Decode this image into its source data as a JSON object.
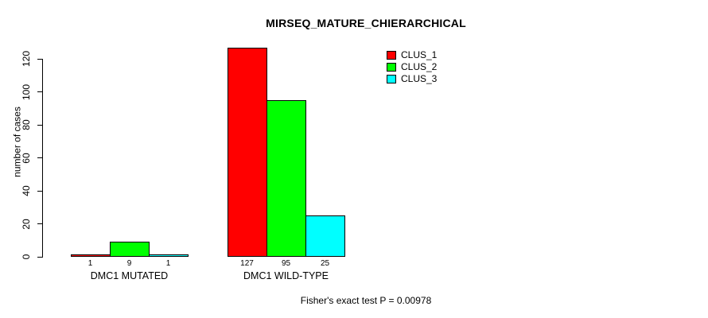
{
  "chart_data": {
    "type": "bar",
    "title": "MIRSEQ_MATURE_CHIERARCHICAL",
    "xlabel": "",
    "ylabel": "number of cases",
    "ylim": [
      0,
      130
    ],
    "yticks": [
      0,
      20,
      40,
      60,
      80,
      100,
      120
    ],
    "grid": false,
    "legend_position": "top-right",
    "categories": [
      "DMC1 MUTATED",
      "DMC1 WILD-TYPE"
    ],
    "series": [
      {
        "name": "CLUS_1",
        "color": "#ff0000",
        "values": [
          1,
          127
        ]
      },
      {
        "name": "CLUS_2",
        "color": "#00ff00",
        "values": [
          9,
          95
        ]
      },
      {
        "name": "CLUS_3",
        "color": "#00ffff",
        "values": [
          1,
          25
        ]
      }
    ],
    "bar_labels": [
      [
        "1",
        "9",
        "1"
      ],
      [
        "127",
        "95",
        "25"
      ]
    ]
  },
  "footer": {
    "text": "Fisher's exact test P = 0.00978"
  },
  "colors": {
    "axis": "#000000",
    "background": "#ffffff",
    "clus_1": "#ff0000",
    "clus_2": "#00ff00",
    "clus_3": "#00ffff"
  }
}
